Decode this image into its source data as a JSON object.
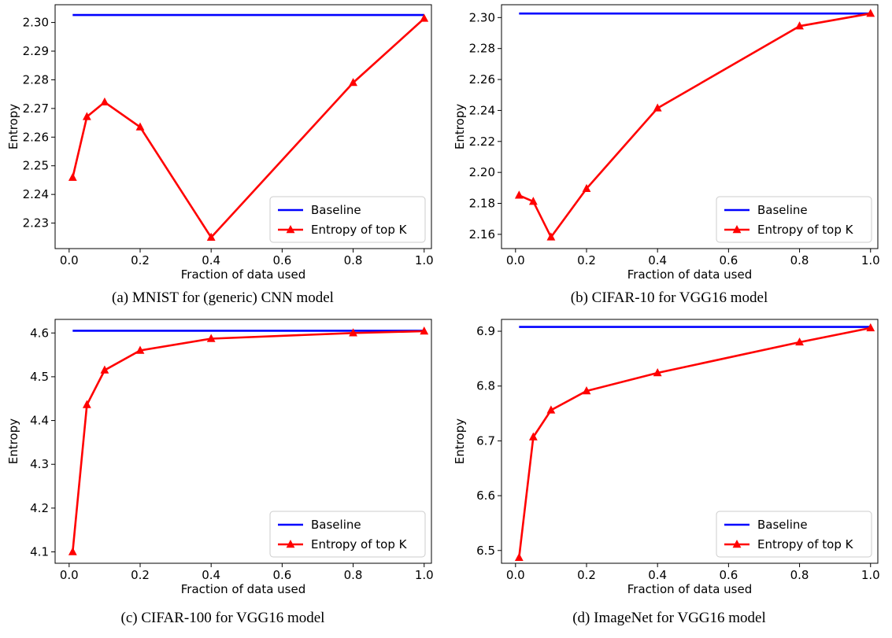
{
  "colors": {
    "baseline": "#0000ff",
    "entropy": "#ff0000"
  },
  "chart_data": [
    {
      "type": "line",
      "caption": "(a) MNIST for (generic) CNN model",
      "xlabel": "Fraction of data used",
      "ylabel": "Entropy",
      "xlim": [
        -0.0395,
        1.0205
      ],
      "ylim": [
        2.2211,
        2.3062
      ],
      "xticks": [
        0.0,
        0.2,
        0.4,
        0.6,
        0.8,
        1.0
      ],
      "xtick_labels": [
        "0.0",
        "0.2",
        "0.4",
        "0.6",
        "0.8",
        "1.0"
      ],
      "yticks": [
        2.23,
        2.24,
        2.25,
        2.26,
        2.27,
        2.28,
        2.29,
        2.3
      ],
      "ytick_labels": [
        "2.23",
        "2.24",
        "2.25",
        "2.26",
        "2.27",
        "2.28",
        "2.29",
        "2.30"
      ],
      "legend": "lower-right",
      "series": [
        {
          "name": "Baseline",
          "color": "#0000ff",
          "marker": "none",
          "x": [
            0.01,
            1.0
          ],
          "y": [
            2.3026,
            2.3026
          ]
        },
        {
          "name": "Entropy of top K",
          "color": "#ff0000",
          "marker": "triangle",
          "x": [
            0.01,
            0.05,
            0.1,
            0.2,
            0.4,
            0.8,
            1.0
          ],
          "y": [
            2.2459,
            2.2671,
            2.2722,
            2.2635,
            2.225,
            2.279,
            2.3014
          ]
        }
      ]
    },
    {
      "type": "line",
      "caption": "(b) CIFAR-10 for VGG16 model",
      "xlabel": "Fraction of data used",
      "ylabel": "Entropy",
      "xlim": [
        -0.0395,
        1.0205
      ],
      "ylim": [
        2.1508,
        2.3083
      ],
      "xticks": [
        0.0,
        0.2,
        0.4,
        0.6,
        0.8,
        1.0
      ],
      "xtick_labels": [
        "0.0",
        "0.2",
        "0.4",
        "0.6",
        "0.8",
        "1.0"
      ],
      "yticks": [
        2.16,
        2.18,
        2.2,
        2.22,
        2.24,
        2.26,
        2.28,
        2.3
      ],
      "ytick_labels": [
        "2.16",
        "2.18",
        "2.20",
        "2.22",
        "2.24",
        "2.26",
        "2.28",
        "2.30"
      ],
      "legend": "lower-right",
      "series": [
        {
          "name": "Baseline",
          "color": "#0000ff",
          "marker": "none",
          "x": [
            0.01,
            1.0
          ],
          "y": [
            2.3026,
            2.3026
          ]
        },
        {
          "name": "Entropy of top K",
          "color": "#ff0000",
          "marker": "triangle",
          "x": [
            0.01,
            0.05,
            0.1,
            0.2,
            0.4,
            0.8,
            1.0
          ],
          "y": [
            2.1852,
            2.1812,
            2.1582,
            2.1895,
            2.2415,
            2.2945,
            2.3026
          ]
        }
      ]
    },
    {
      "type": "line",
      "caption": "(c) CIFAR-100 for VGG16 model",
      "xlabel": "Fraction of data used",
      "ylabel": "Entropy",
      "xlim": [
        -0.0395,
        1.0205
      ],
      "ylim": [
        4.074,
        4.631
      ],
      "xticks": [
        0.0,
        0.2,
        0.4,
        0.6,
        0.8,
        1.0
      ],
      "xtick_labels": [
        "0.0",
        "0.2",
        "0.4",
        "0.6",
        "0.8",
        "1.0"
      ],
      "yticks": [
        4.1,
        4.2,
        4.3,
        4.4,
        4.5,
        4.6
      ],
      "ytick_labels": [
        "4.1",
        "4.2",
        "4.3",
        "4.4",
        "4.5",
        "4.6"
      ],
      "legend": "lower-right",
      "series": [
        {
          "name": "Baseline",
          "color": "#0000ff",
          "marker": "none",
          "x": [
            0.01,
            1.0
          ],
          "y": [
            4.6052,
            4.6052
          ]
        },
        {
          "name": "Entropy of top K",
          "color": "#ff0000",
          "marker": "triangle",
          "x": [
            0.01,
            0.05,
            0.1,
            0.2,
            0.4,
            0.8,
            1.0
          ],
          "y": [
            4.1,
            4.436,
            4.515,
            4.56,
            4.587,
            4.6,
            4.604
          ]
        }
      ]
    },
    {
      "type": "line",
      "caption": "(d) ImageNet for VGG16 model",
      "xlabel": "Fraction of data used",
      "ylabel": "Entropy",
      "xlim": [
        -0.0395,
        1.0205
      ],
      "ylim": [
        6.4767,
        6.9216
      ],
      "xticks": [
        0.0,
        0.2,
        0.4,
        0.6,
        0.8,
        1.0
      ],
      "xtick_labels": [
        "0.0",
        "0.2",
        "0.4",
        "0.6",
        "0.8",
        "1.0"
      ],
      "yticks": [
        6.5,
        6.6,
        6.7,
        6.8,
        6.9
      ],
      "ytick_labels": [
        "6.5",
        "6.6",
        "6.7",
        "6.8",
        "6.9"
      ],
      "legend": "lower-right",
      "series": [
        {
          "name": "Baseline",
          "color": "#0000ff",
          "marker": "none",
          "x": [
            0.01,
            1.0
          ],
          "y": [
            6.9078,
            6.9078
          ]
        },
        {
          "name": "Entropy of top K",
          "color": "#ff0000",
          "marker": "triangle",
          "x": [
            0.01,
            0.05,
            0.1,
            0.2,
            0.4,
            0.8,
            1.0
          ],
          "y": [
            6.487,
            6.707,
            6.756,
            6.791,
            6.824,
            6.88,
            6.906
          ]
        }
      ]
    }
  ]
}
